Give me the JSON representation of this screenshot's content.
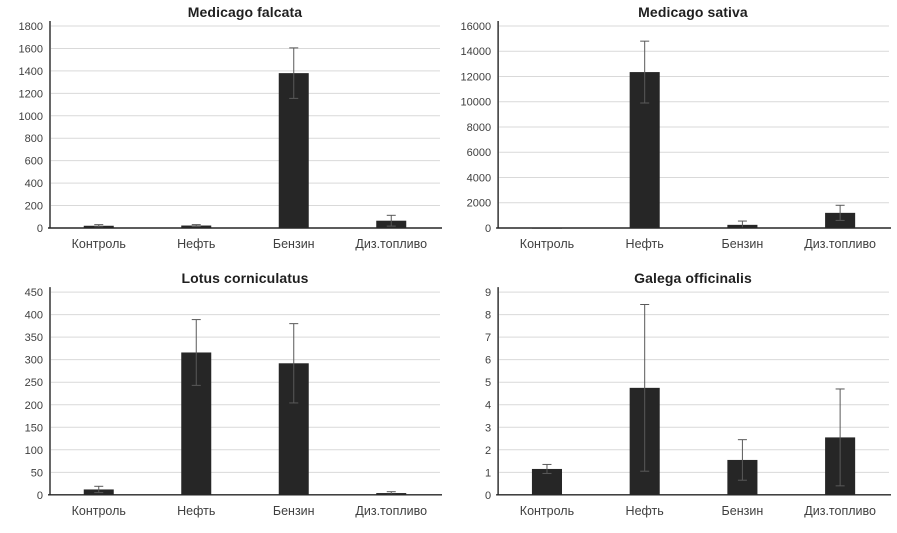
{
  "page": {
    "background": "#ffffff",
    "description": "Four bar charts with error bars comparing plant species response to fuel contamination"
  },
  "colors": {
    "bar": "#262626",
    "error": "#595959",
    "grid": "#d9d9d9",
    "axis": "#262626",
    "text": "#3f3f3f",
    "title": "#1f1f1f"
  },
  "chart_data": [
    {
      "type": "bar",
      "title": "Medicago falcata",
      "categories": [
        "Контроль",
        "Нефть",
        "Бензин",
        "Диз.топливо"
      ],
      "values": [
        20,
        22,
        1380,
        65
      ],
      "errors": [
        10,
        8,
        225,
        48
      ],
      "ylim": [
        0,
        1800
      ],
      "ystep": 200,
      "yticks": [
        0,
        200,
        400,
        600,
        800,
        1000,
        1200,
        1400,
        1600,
        1800
      ],
      "xlabel": "",
      "ylabel": "",
      "grid": true,
      "legend": "none"
    },
    {
      "type": "bar",
      "title": "Medicago sativa",
      "categories": [
        "Контроль",
        "Нефть",
        "Бензин",
        "Диз.топливо"
      ],
      "values": [
        30,
        12350,
        250,
        1200
      ],
      "errors": [
        0,
        2450,
        300,
        600
      ],
      "ylim": [
        0,
        16000
      ],
      "ystep": 2000,
      "yticks": [
        0,
        2000,
        4000,
        6000,
        8000,
        10000,
        12000,
        14000,
        16000
      ],
      "xlabel": "",
      "ylabel": "",
      "grid": true,
      "legend": "none"
    },
    {
      "type": "bar",
      "title": "Lotus corniculatus",
      "categories": [
        "Контроль",
        "Нефть",
        "Бензин",
        "Диз.топливо"
      ],
      "values": [
        12,
        316,
        292,
        4
      ],
      "errors": [
        7,
        73,
        88,
        3
      ],
      "ylim": [
        0,
        450
      ],
      "ystep": 50,
      "yticks": [
        0,
        50,
        100,
        150,
        200,
        250,
        300,
        350,
        400,
        450
      ],
      "xlabel": "",
      "ylabel": "",
      "grid": true,
      "legend": "none"
    },
    {
      "type": "bar",
      "title": "Galega officinalis",
      "categories": [
        "Контроль",
        "Нефть",
        "Бензин",
        "Диз.топливо"
      ],
      "values": [
        1.15,
        4.75,
        1.55,
        2.55
      ],
      "errors": [
        0.2,
        3.7,
        0.9,
        2.15
      ],
      "ylim": [
        0,
        9
      ],
      "ystep": 1,
      "yticks": [
        0,
        1,
        2,
        3,
        4,
        5,
        6,
        7,
        8,
        9
      ],
      "xlabel": "",
      "ylabel": "",
      "grid": true,
      "legend": "none"
    }
  ]
}
